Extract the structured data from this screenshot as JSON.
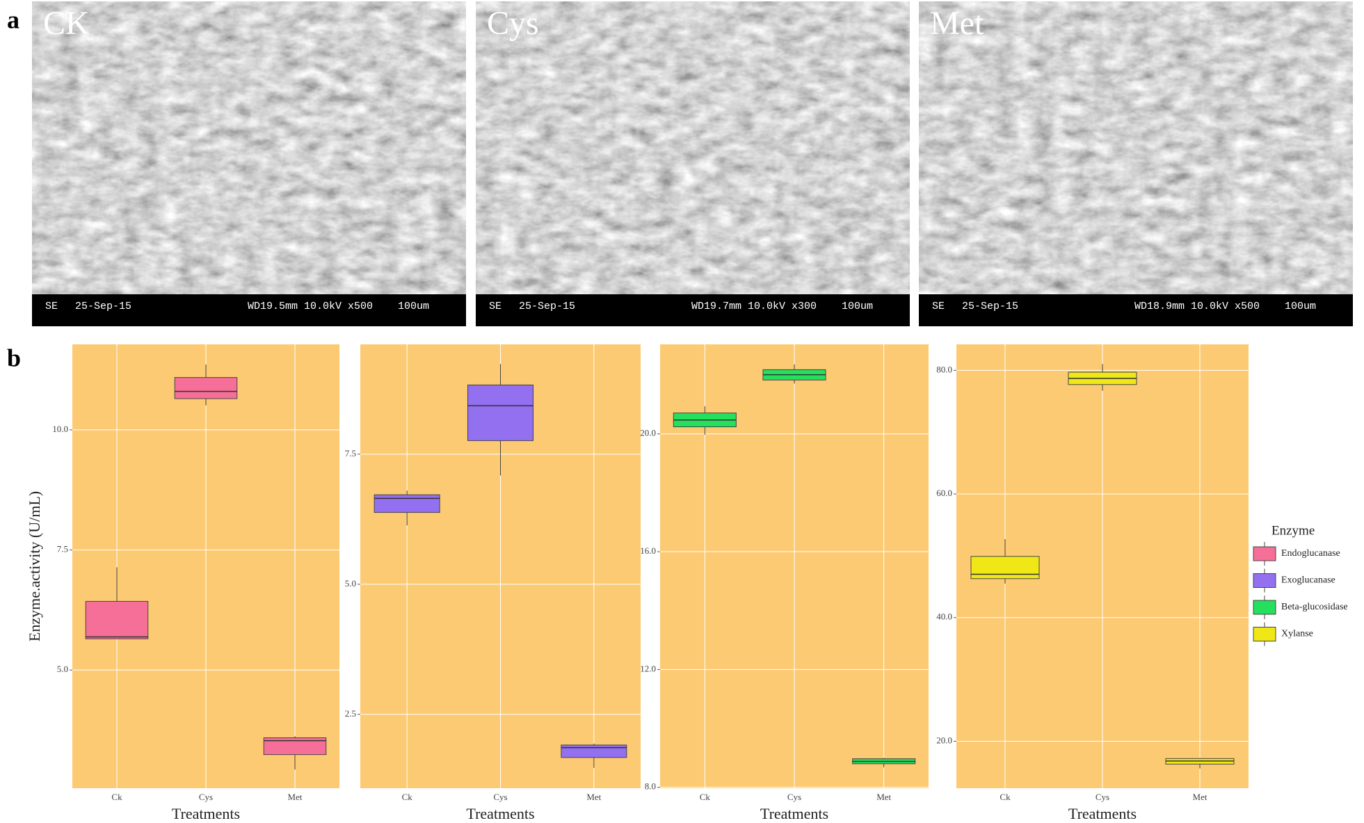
{
  "panel_a": {
    "label": "a",
    "images": [
      {
        "label": "CK",
        "mode": "SE",
        "date": "25-Sep-15",
        "params": "WD19.5mm 10.0kV x500",
        "scale": "100um"
      },
      {
        "label": "Cys",
        "mode": "SE",
        "date": "25-Sep-15",
        "params": "WD19.7mm 10.0kV x300",
        "scale": "100um"
      },
      {
        "label": "Met",
        "mode": "SE",
        "date": "25-Sep-15",
        "params": "WD18.9mm 10.0kV x500",
        "scale": "100um"
      }
    ]
  },
  "panel_b": {
    "label": "b",
    "legend_title": "Enzyme"
  },
  "chart_data": [
    {
      "type": "box",
      "ylabel": "Enzyme.activity (U/mL)",
      "xlabel": "Treatments",
      "categories": [
        "Ck",
        "Cys",
        "Met"
      ],
      "background": "#fdca74",
      "grid": true,
      "series": [
        {
          "name": "Endoglucanase",
          "color": "#f56f98",
          "values": [
            {
              "min": 5.65,
              "q1": 5.65,
              "median": 5.69,
              "q3": 6.43,
              "max": 7.14
            },
            {
              "min": 10.51,
              "q1": 10.65,
              "median": 10.8,
              "q3": 11.09,
              "max": 11.36
            },
            {
              "min": 2.93,
              "q1": 3.24,
              "median": 3.53,
              "q3": 3.59,
              "max": 3.62
            }
          ]
        }
      ],
      "ylim": [
        2.54,
        11.78
      ],
      "yticks": [
        {
          "value": 5,
          "label": "5.0"
        },
        {
          "value": 7.5,
          "label": "7.5"
        },
        {
          "value": 10,
          "label": "10.0"
        }
      ]
    },
    {
      "type": "box",
      "xlabel": "Treatments",
      "categories": [
        "Ck",
        "Cys",
        "Met"
      ],
      "background": "#fdca74",
      "grid": true,
      "series": [
        {
          "name": "Exoglucanase",
          "color": "#9270ef",
          "values": [
            {
              "min": 6.13,
              "q1": 6.38,
              "median": 6.65,
              "q3": 6.72,
              "max": 6.8
            },
            {
              "min": 7.09,
              "q1": 7.76,
              "median": 8.43,
              "q3": 8.83,
              "max": 9.23
            },
            {
              "min": 1.47,
              "q1": 1.67,
              "median": 1.86,
              "q3": 1.91,
              "max": 1.94
            }
          ]
        }
      ],
      "ylim": [
        1.08,
        9.61
      ],
      "yticks": [
        {
          "value": 2.5,
          "label": "2.5"
        },
        {
          "value": 5,
          "label": "5.0"
        },
        {
          "value": 7.5,
          "label": "7.5"
        }
      ]
    },
    {
      "type": "box",
      "xlabel": "Treatments",
      "categories": [
        "Ck",
        "Cys",
        "Met"
      ],
      "background": "#fdca74",
      "grid": true,
      "series": [
        {
          "name": "Beta-glucosidase",
          "color": "#25e05c",
          "values": [
            {
              "min": 19.97,
              "q1": 20.24,
              "median": 20.47,
              "q3": 20.71,
              "max": 20.94
            },
            {
              "min": 21.71,
              "q1": 21.83,
              "median": 22.01,
              "q3": 22.18,
              "max": 22.36
            },
            {
              "min": 8.68,
              "q1": 8.8,
              "median": 8.88,
              "q3": 8.97,
              "max": 9.0
            }
          ]
        }
      ],
      "ylim": [
        7.97,
        23.04
      ],
      "yticks": [
        {
          "value": 8,
          "label": "8.0"
        },
        {
          "value": 12,
          "label": "12.0"
        },
        {
          "value": 16,
          "label": "16.0"
        },
        {
          "value": 20,
          "label": "20.0"
        }
      ]
    },
    {
      "type": "box",
      "xlabel": "Treatments",
      "categories": [
        "Ck",
        "Cys",
        "Met"
      ],
      "background": "#fdca74",
      "grid": true,
      "series": [
        {
          "name": "Xylanse",
          "color": "#f0e816",
          "values": [
            {
              "min": 45.5,
              "q1": 46.3,
              "median": 47.0,
              "q3": 49.9,
              "max": 52.7
            },
            {
              "min": 76.7,
              "q1": 77.7,
              "median": 78.7,
              "q3": 79.7,
              "max": 81.0
            },
            {
              "min": 15.6,
              "q1": 16.3,
              "median": 16.8,
              "q3": 17.2,
              "max": 17.3
            }
          ]
        }
      ],
      "ylim": [
        12.4,
        84.2
      ],
      "yticks": [
        {
          "value": 20,
          "label": "20.0"
        },
        {
          "value": 40,
          "label": "40.0"
        },
        {
          "value": 60,
          "label": "60.0"
        },
        {
          "value": 80,
          "label": "80.0"
        }
      ]
    }
  ]
}
